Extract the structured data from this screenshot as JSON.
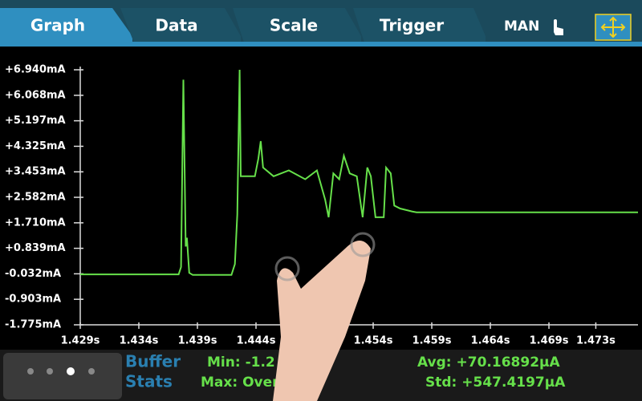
{
  "tabs": [
    "Graph",
    "Data",
    "Scale",
    "Trigger"
  ],
  "mode": "MAN",
  "stats": {
    "title_line1": "Buffer",
    "title_line2": "Stats",
    "min": "Min: -1.2",
    "max": "Max: Over",
    "avg": "Avg: +70.16892µA",
    "std": "Std: +547.4197µA"
  },
  "chart_data": {
    "type": "line",
    "xlim": [
      1.429,
      1.4766
    ],
    "ylim": [
      -1.775,
      6.94
    ],
    "xticks": [
      {
        "value": 1.429,
        "label": "1.429s"
      },
      {
        "value": 1.434,
        "label": "1.434s"
      },
      {
        "value": 1.439,
        "label": "1.439s"
      },
      {
        "value": 1.444,
        "label": "1.444s"
      },
      {
        "value": 1.454,
        "label": "1.454s"
      },
      {
        "value": 1.459,
        "label": "1.459s"
      },
      {
        "value": 1.464,
        "label": "1.464s"
      },
      {
        "value": 1.469,
        "label": "1.469s"
      },
      {
        "value": 1.473,
        "label": "1.473s"
      }
    ],
    "yticks": [
      {
        "value": 6.94,
        "label": "+6.940mA"
      },
      {
        "value": 6.068,
        "label": "+6.068mA"
      },
      {
        "value": 5.197,
        "label": "+5.197mA"
      },
      {
        "value": 4.325,
        "label": "+4.325mA"
      },
      {
        "value": 3.453,
        "label": "+3.453mA"
      },
      {
        "value": 2.582,
        "label": "+2.582mA"
      },
      {
        "value": 1.71,
        "label": "+1.710mA"
      },
      {
        "value": 0.839,
        "label": "+0.839mA"
      },
      {
        "value": -0.032,
        "label": "-0.032mA"
      },
      {
        "value": -0.903,
        "label": "-0.903mA"
      },
      {
        "value": -1.775,
        "label": "-1.775mA"
      }
    ],
    "series": [
      {
        "color": "#66e04a",
        "x": [
          1.429,
          1.4374,
          1.4376,
          1.4378,
          1.438,
          1.4381,
          1.4383,
          1.4386,
          1.4419,
          1.4422,
          1.4424,
          1.4426,
          1.4427,
          1.4439,
          1.4442,
          1.4444,
          1.4446,
          1.4455,
          1.4468,
          1.4482,
          1.4492,
          1.4499,
          1.4502,
          1.4506,
          1.4511,
          1.4515,
          1.452,
          1.4526,
          1.4531,
          1.4535,
          1.4538,
          1.4542,
          1.4549,
          1.4551,
          1.4555,
          1.4558,
          1.4563,
          1.4573,
          1.4577,
          1.4766
        ],
        "values": [
          -0.05,
          -0.05,
          0.2,
          6.6,
          0.9,
          1.2,
          0.0,
          -0.07,
          -0.07,
          0.3,
          2.0,
          6.94,
          3.3,
          3.3,
          3.9,
          4.5,
          3.6,
          3.3,
          3.5,
          3.2,
          3.5,
          2.5,
          1.9,
          3.4,
          3.2,
          4.0,
          3.4,
          3.3,
          1.9,
          3.6,
          3.3,
          1.9,
          1.9,
          3.6,
          3.4,
          2.3,
          2.2,
          2.1,
          2.07,
          2.07
        ]
      }
    ]
  }
}
